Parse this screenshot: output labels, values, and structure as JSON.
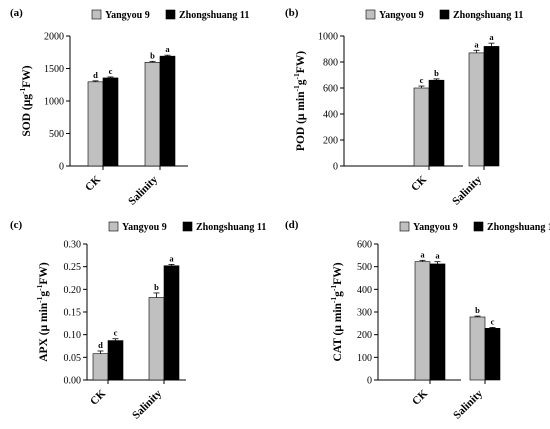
{
  "legend": {
    "items": [
      {
        "label": "Yangyou 9",
        "color": "#c0c0c0"
      },
      {
        "label": "Zhongshuang 11",
        "color": "#000000"
      }
    ]
  },
  "chart_data": [
    {
      "type": "bar",
      "panel_label": "(a)",
      "ylabel_parts": [
        "SOD (μg",
        "-1",
        "FW)"
      ],
      "categories": [
        "CK",
        "Salinity"
      ],
      "ylim": [
        0,
        2000
      ],
      "yticks": [
        "0",
        "500",
        "1000",
        "1500",
        "2000"
      ],
      "ytick_values": [
        0,
        500,
        1000,
        1500,
        2000
      ],
      "series": [
        {
          "name": "Yangyou 9",
          "values": [
            1295,
            1595
          ],
          "errors": [
            15,
            15
          ],
          "letters": [
            "d",
            "b"
          ]
        },
        {
          "name": "Zhongshuang 11",
          "values": [
            1355,
            1690
          ],
          "errors": [
            15,
            15
          ],
          "letters": [
            "c",
            "a"
          ]
        }
      ]
    },
    {
      "type": "bar",
      "panel_label": "(b)",
      "ylabel_parts": [
        "POD (μ min",
        "-1",
        "g",
        "-1",
        "FW)"
      ],
      "categories": [
        "CK",
        "Salinity"
      ],
      "ylim": [
        0,
        1000
      ],
      "yticks": [
        "0",
        "200",
        "400",
        "600",
        "800",
        "1000"
      ],
      "ytick_values": [
        0,
        200,
        400,
        600,
        800,
        1000
      ],
      "series": [
        {
          "name": "Yangyou 9",
          "values": [
            600,
            870
          ],
          "errors": [
            15,
            20
          ],
          "letters": [
            "c",
            "a"
          ]
        },
        {
          "name": "Zhongshuang 11",
          "values": [
            660,
            920
          ],
          "errors": [
            10,
            25
          ],
          "letters": [
            "b",
            "a"
          ]
        }
      ]
    },
    {
      "type": "bar",
      "panel_label": "(c)",
      "ylabel_parts": [
        "APX (μ min",
        "-1",
        "g",
        "-1",
        "FW)"
      ],
      "categories": [
        "CK",
        "Salinity"
      ],
      "ylim": [
        0,
        0.3
      ],
      "yticks": [
        "0.00",
        "0.05",
        "0.10",
        "0.15",
        "0.20",
        "0.25",
        "0.30"
      ],
      "ytick_values": [
        0,
        0.05,
        0.1,
        0.15,
        0.2,
        0.25,
        0.3
      ],
      "series": [
        {
          "name": "Yangyou 9",
          "values": [
            0.058,
            0.182
          ],
          "errors": [
            0.006,
            0.01
          ],
          "letters": [
            "d",
            "b"
          ]
        },
        {
          "name": "Zhongshuang 11",
          "values": [
            0.087,
            0.252
          ],
          "errors": [
            0.004,
            0.003
          ],
          "letters": [
            "c",
            "a"
          ]
        }
      ]
    },
    {
      "type": "bar",
      "panel_label": "(d)",
      "ylabel_parts": [
        "CAT (μ min",
        "-1",
        "g",
        "-1",
        "FW)"
      ],
      "categories": [
        "CK",
        "Salinity"
      ],
      "ylim": [
        0,
        600
      ],
      "yticks": [
        "0",
        "100",
        "200",
        "300",
        "400",
        "500",
        "600"
      ],
      "ytick_values": [
        0,
        100,
        200,
        300,
        400,
        500,
        600
      ],
      "series": [
        {
          "name": "Yangyou 9",
          "values": [
            522,
            278
          ],
          "errors": [
            6,
            4
          ],
          "letters": [
            "a",
            "b"
          ]
        },
        {
          "name": "Zhongshuang 11",
          "values": [
            512,
            228
          ],
          "errors": [
            10,
            4
          ],
          "letters": [
            "a",
            "c"
          ]
        }
      ]
    }
  ]
}
